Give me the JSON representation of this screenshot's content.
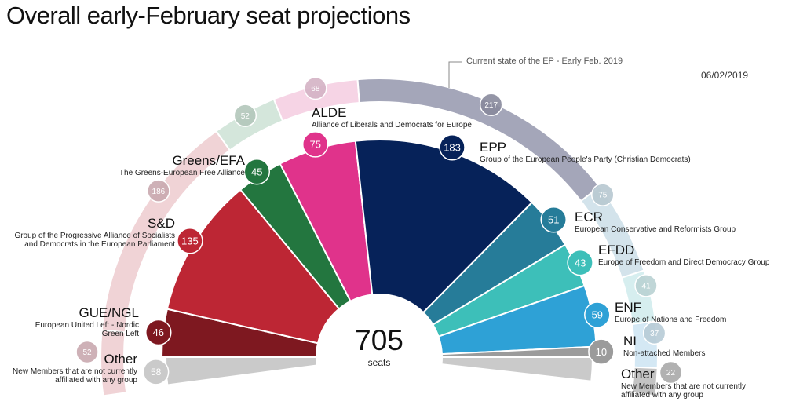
{
  "title": "Overall early-February seat projections",
  "date": "06/02/2019",
  "annotation": "Current state of the EP - Early Feb. 2019",
  "total": {
    "value": "705",
    "unit": "seats"
  },
  "chart_data": {
    "type": "hemicycle",
    "title": "Overall early-February seat projections",
    "total_seats": 705,
    "projection": [
      {
        "group": "Other",
        "desc": "New Members that are not currently affiliated with any group",
        "seats": 58,
        "color": "#cacaca"
      },
      {
        "group": "GUE/NGL",
        "desc": "European United Left - Nordic Green Left",
        "seats": 46,
        "color": "#7e1820"
      },
      {
        "group": "S&D",
        "desc": "Group of the Progressive Alliance of Socialists and Democrats in the European Parliament",
        "seats": 135,
        "color": "#bd2634"
      },
      {
        "group": "Greens/EFA",
        "desc": "The Greens-European Free Alliance",
        "seats": 45,
        "color": "#23763f"
      },
      {
        "group": "ALDE",
        "desc": "Alliance of Liberals and Democrats for Europe",
        "seats": 75,
        "color": "#e0338b"
      },
      {
        "group": "EPP",
        "desc": "Group of the European People's Party (Christian Democrats)",
        "seats": 183,
        "color": "#062259"
      },
      {
        "group": "ECR",
        "desc": "European Conservative and Reformists Group",
        "seats": 51,
        "color": "#267c99"
      },
      {
        "group": "EFDD",
        "desc": "Europe of Freedom and Direct Democracy Group",
        "seats": 43,
        "color": "#3dbfb9"
      },
      {
        "group": "ENF",
        "desc": "Europe of Nations and Freedom",
        "seats": 59,
        "color": "#2ea1d6"
      },
      {
        "group": "NI",
        "desc": "Non-attached Members",
        "seats": 10,
        "color": "#9b9b9b"
      }
    ],
    "current_state": [
      {
        "group": "GUE/NGL",
        "seats": 52,
        "color": "#f0d3d6",
        "bubble": "#c9a9af"
      },
      {
        "group": "S&D",
        "seats": 186,
        "color": "#f0d3d6",
        "bubble": "#c9a9af"
      },
      {
        "group": "Greens/EFA",
        "seats": 52,
        "color": "#d4e6db",
        "bubble": "#b3c6ba"
      },
      {
        "group": "ALDE",
        "seats": 68,
        "color": "#f6d4e5",
        "bubble": "#d4b2c4"
      },
      {
        "group": "EPP",
        "seats": 217,
        "color": "#a4a6b9",
        "bubble": "#888a9c"
      },
      {
        "group": "ECR",
        "seats": 75,
        "color": "#d3e3eb",
        "bubble": "#b7c8d0"
      },
      {
        "group": "EFDD",
        "seats": 41,
        "color": "#d6eeef",
        "bubble": "#b9d2d3"
      },
      {
        "group": "ENF",
        "seats": 37,
        "color": "#d4e8f4",
        "bubble": "#b7cbd6"
      },
      {
        "group": "NI",
        "seats": 22,
        "color": "#c3c3c3",
        "bubble": "#a8a8a8"
      }
    ]
  }
}
